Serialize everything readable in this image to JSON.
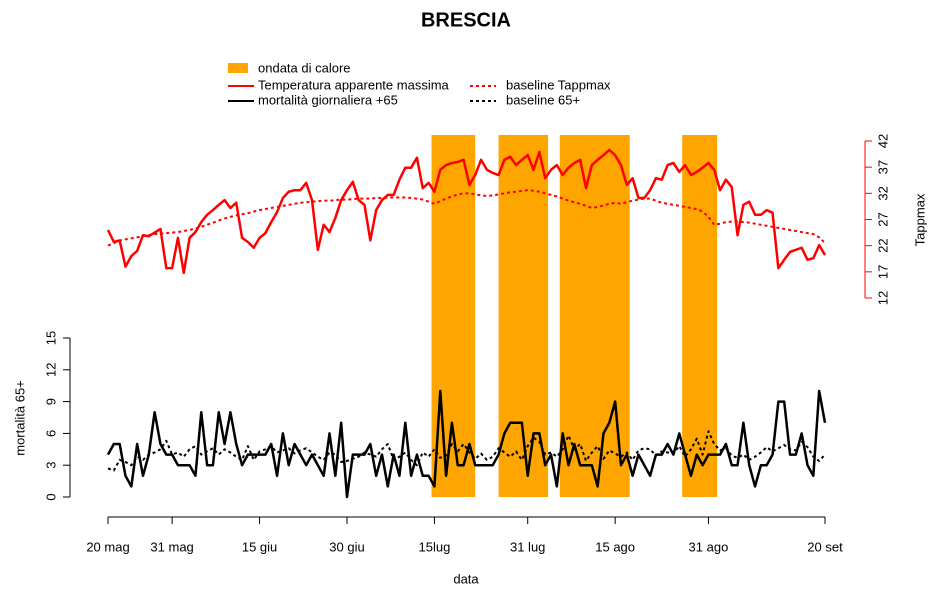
{
  "chart_data": {
    "type": "line",
    "title": "BRESCIA",
    "x_label": "data",
    "y_label": "mortalità 65+",
    "y2_label": "Tappmax",
    "x": [
      0,
      1,
      2,
      3,
      4,
      5,
      6,
      7,
      8,
      9,
      10,
      11,
      12,
      13,
      14,
      15,
      16,
      17,
      18,
      19,
      20,
      21,
      22,
      23,
      24,
      25,
      26,
      27,
      28,
      29,
      30,
      31,
      32,
      33,
      34,
      35,
      36,
      37,
      38,
      39,
      40,
      41,
      42,
      43,
      44,
      45,
      46,
      47,
      48,
      49,
      50,
      51,
      52,
      53,
      54,
      55,
      56,
      57,
      58,
      59,
      60,
      61,
      62,
      63,
      64,
      65,
      66,
      67,
      68,
      69,
      70,
      71,
      72,
      73,
      74,
      75,
      76,
      77,
      78,
      79,
      80,
      81,
      82,
      83,
      84,
      85,
      86,
      87,
      88,
      89,
      90,
      91,
      92,
      93,
      94,
      95,
      96,
      97,
      98,
      99,
      100,
      101,
      102,
      103,
      104,
      105,
      106,
      107,
      108,
      109,
      110,
      111,
      112,
      113,
      114,
      115,
      116,
      117,
      118,
      119,
      120,
      121,
      122,
      123
    ],
    "xlim": [
      0,
      123
    ],
    "xticks": [
      {
        "value": 0,
        "label": "20 mag"
      },
      {
        "value": 11,
        "label": "31 mag"
      },
      {
        "value": 26,
        "label": "15 giu"
      },
      {
        "value": 41,
        "label": "30 giu"
      },
      {
        "value": 56,
        "label": "15lug"
      },
      {
        "value": 72,
        "label": "31 lug"
      },
      {
        "value": 87,
        "label": "15 ago"
      },
      {
        "value": 103,
        "label": "31 ago"
      },
      {
        "value": 123,
        "label": "20 set"
      }
    ],
    "ylim": [
      0,
      15
    ],
    "yticks": [
      0,
      3,
      6,
      9,
      12,
      15
    ],
    "y2lim": [
      12,
      42
    ],
    "y2ticks": [
      12,
      17,
      22,
      27,
      32,
      37,
      42
    ],
    "heatwaves": {
      "name": "ondata di calore",
      "color": "#ffa500",
      "ranges": [
        [
          55.5,
          63
        ],
        [
          67,
          75.5
        ],
        [
          77.5,
          89.5
        ],
        [
          98.5,
          104.5
        ]
      ]
    },
    "series": [
      {
        "name": "Temperatura apparente massima",
        "color": "#ff0000",
        "dash": "solid",
        "axis": "y2",
        "values": [
          25,
          22.7,
          23,
          18,
          20,
          21,
          24,
          23.8,
          24.5,
          25.2,
          17.7,
          17.7,
          23.5,
          16.8,
          23.5,
          24.6,
          26.5,
          27.9,
          28.8,
          29.8,
          30.7,
          29.2,
          30.2,
          23.5,
          22.7,
          21.6,
          23.5,
          24.4,
          26.5,
          28.4,
          31.1,
          32.3,
          32.6,
          32.6,
          34,
          30.7,
          21.2,
          26,
          24.6,
          27.3,
          30.7,
          32.6,
          34.2,
          30.7,
          29.8,
          23,
          28.8,
          30.7,
          31.7,
          31.7,
          34.6,
          36.9,
          36.9,
          38.8,
          33,
          34,
          32.3,
          36.5,
          37.4,
          37.8,
          38,
          38.4,
          33.6,
          35.5,
          38.4,
          36.5,
          35.9,
          35.5,
          38.4,
          39,
          37.4,
          38.4,
          39.3,
          36.5,
          39.9,
          34.9,
          36.5,
          37.4,
          35.5,
          36.9,
          37.8,
          38.4,
          33,
          37.4,
          38.4,
          39.3,
          40.3,
          39.3,
          37.4,
          33.6,
          34.9,
          31.1,
          31.1,
          32.6,
          34.9,
          34.6,
          37.4,
          37.8,
          36.1,
          37.4,
          35.5,
          36.1,
          36.9,
          37.8,
          36.5,
          32.6,
          34.6,
          33.2,
          24,
          29.8,
          30.4,
          27.9,
          27.9,
          28.8,
          28.3,
          17.7,
          19.3,
          20.8,
          21.2,
          21.6,
          19.3,
          19.6,
          22.1,
          20.2
        ]
      },
      {
        "name": "baseline Tappmax",
        "color": "#ff0000",
        "dash": "dotted",
        "axis": "y2",
        "values": [
          22,
          22.5,
          23,
          23.2,
          23.4,
          23.6,
          23.8,
          24,
          24.2,
          24.3,
          24.4,
          24.5,
          24.6,
          24.8,
          25,
          25.3,
          25.6,
          26,
          26.4,
          26.8,
          27.2,
          27.5,
          27.8,
          28,
          28.2,
          28.5,
          28.8,
          29,
          29.2,
          29.4,
          29.6,
          29.8,
          30,
          30.2,
          30.3,
          30.4,
          30.5,
          30.6,
          30.6,
          30.7,
          30.8,
          30.8,
          30.9,
          31,
          31,
          31,
          31.1,
          31.1,
          31.2,
          31.2,
          31.2,
          31.2,
          31.1,
          31,
          30.8,
          30.4,
          30,
          30.5,
          31,
          31.4,
          31.8,
          32,
          32,
          31.8,
          31.6,
          31.5,
          31.6,
          31.8,
          32,
          32.2,
          32.3,
          32.5,
          32.6,
          32.5,
          32.3,
          32,
          31.7,
          31.4,
          31,
          30.6,
          30.3,
          30,
          29.6,
          29.2,
          29.4,
          29.7,
          30,
          30.2,
          30,
          30.3,
          30.6,
          30.8,
          31,
          31,
          30.6,
          30.2,
          30,
          29.8,
          29.6,
          29.4,
          29.2,
          29,
          28.5,
          27.5,
          26,
          26.2,
          26.5,
          26.6,
          26.6,
          26.5,
          26.4,
          26.2,
          26,
          25.8,
          25.6,
          25.4,
          25.2,
          25,
          24.8,
          24.6,
          24.4,
          24.2,
          23.6,
          22.5
        ]
      },
      {
        "name": "mortalità giornaliera +65",
        "color": "#000000",
        "dash": "solid",
        "axis": "y",
        "values": [
          4,
          5,
          5,
          2,
          1,
          5,
          2,
          4,
          8,
          5,
          4,
          4,
          3,
          3,
          3,
          2,
          8,
          3,
          3,
          8,
          5,
          8,
          5,
          3,
          4,
          4,
          4,
          4,
          5,
          2,
          6,
          3,
          5,
          4,
          3,
          4,
          3,
          2,
          6,
          2,
          7,
          0,
          4,
          4,
          4,
          5,
          2,
          4,
          1,
          4,
          2,
          7,
          2,
          4,
          2,
          2,
          1,
          10,
          2,
          7,
          3,
          3,
          5,
          3,
          3,
          3,
          3,
          4,
          6,
          7,
          7,
          7,
          2,
          6,
          6,
          3,
          4,
          1,
          6,
          3,
          5,
          3,
          3,
          3,
          1,
          6,
          7,
          9,
          3,
          4,
          2,
          4,
          3,
          2,
          4,
          4,
          5,
          4,
          6,
          4,
          2,
          4,
          3,
          4,
          4,
          4,
          5,
          3,
          3,
          7,
          3,
          1,
          3,
          3,
          4,
          9,
          9,
          4,
          4,
          6,
          3,
          2,
          10,
          7
        ]
      },
      {
        "name": "baseline 65+",
        "color": "#000000",
        "dash": "dotted",
        "axis": "y",
        "values": [
          2.7,
          2.5,
          3.5,
          3.3,
          3,
          3.8,
          3.5,
          4,
          4.2,
          4.5,
          5.3,
          4,
          4.2,
          3.8,
          4.5,
          4.8,
          4,
          4.3,
          4.6,
          4,
          4.5,
          4.2,
          3.8,
          3.5,
          4.8,
          3.5,
          4.3,
          4.5,
          4.8,
          4.2,
          4.4,
          4.6,
          4.1,
          4.4,
          4.6,
          4.2,
          3.8,
          3.5,
          4.2,
          4,
          3.3,
          3.4,
          3.6,
          3.8,
          4.2,
          4,
          3.8,
          4.5,
          5,
          3.5,
          3.8,
          4.2,
          3.5,
          3,
          4.2,
          3.8,
          4.5,
          3.7,
          3.9,
          5,
          4.3,
          5,
          4.2,
          3.6,
          4.1,
          3.5,
          3.8,
          4.6,
          4.2,
          3.8,
          4.3,
          3.5,
          4.8,
          5.6,
          5.2,
          4,
          4.2,
          3.8,
          4.5,
          5.8,
          4.5,
          5,
          3.4,
          4.2,
          4.8,
          3.6,
          4.4,
          4.1,
          3.8,
          4.2,
          3.5,
          4.4,
          4.6,
          4.5,
          3.9,
          4.3,
          4.2,
          4.1,
          4.8,
          3.8,
          4.5,
          5.5,
          4,
          6.2,
          5,
          4.4,
          4.6,
          3.9,
          3.7,
          4,
          3.5,
          3.8,
          4.2,
          4.7,
          4.3,
          4.6,
          4.9,
          4.5,
          4.4,
          5.2,
          4.7,
          3.8,
          3.4,
          4
        ]
      }
    ]
  }
}
